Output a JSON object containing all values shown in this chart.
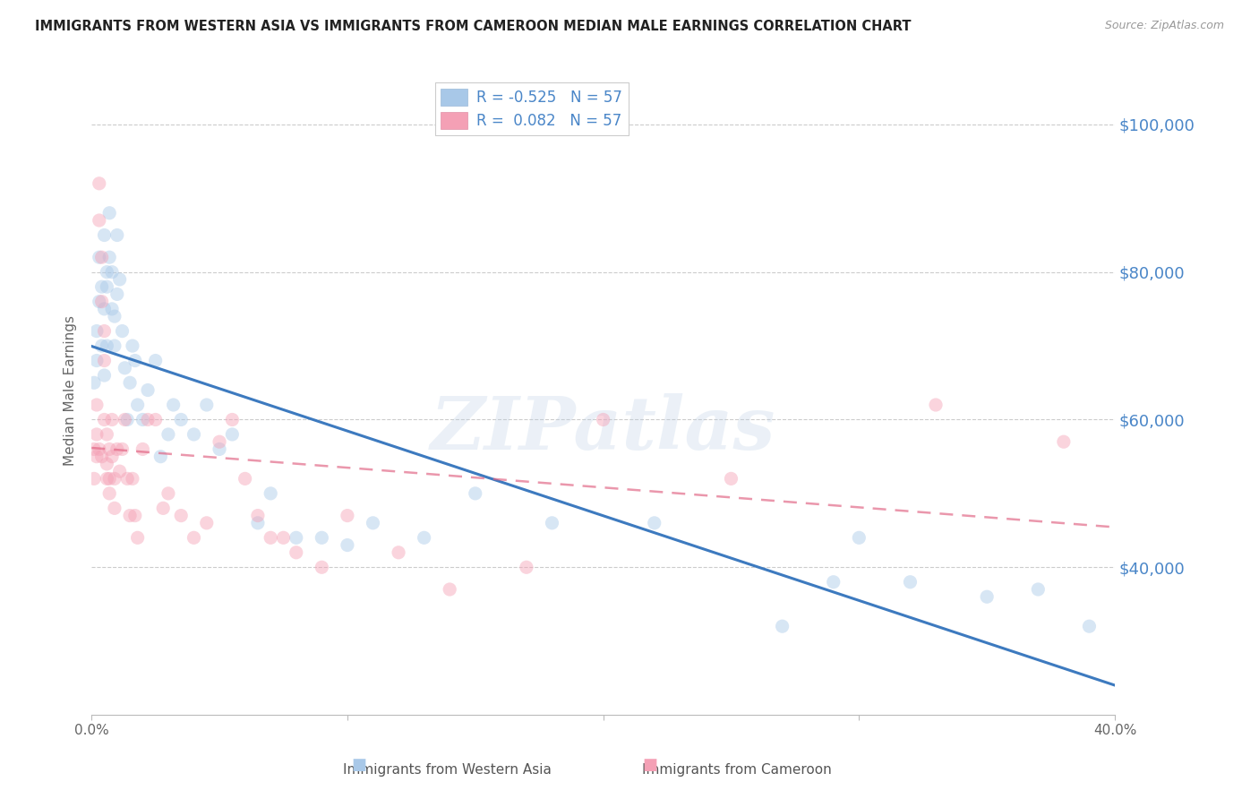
{
  "title": "IMMIGRANTS FROM WESTERN ASIA VS IMMIGRANTS FROM CAMEROON MEDIAN MALE EARNINGS CORRELATION CHART",
  "source": "Source: ZipAtlas.com",
  "ylabel": "Median Male Earnings",
  "xlim": [
    0.0,
    0.4
  ],
  "ylim": [
    20000,
    108000
  ],
  "yticks": [
    40000,
    60000,
    80000,
    100000
  ],
  "xticks": [
    0.0,
    0.1,
    0.2,
    0.3,
    0.4
  ],
  "xtick_labels": [
    "0.0%",
    "",
    "",
    "",
    "40.0%"
  ],
  "ytick_labels": [
    "$40,000",
    "$60,000",
    "$80,000",
    "$100,000"
  ],
  "western_asia_R": -0.525,
  "western_asia_N": 57,
  "cameroon_R": 0.082,
  "cameroon_N": 57,
  "blue_scatter_color": "#a8c8e8",
  "blue_line_color": "#3d7abf",
  "pink_scatter_color": "#f4a0b5",
  "pink_line_color": "#e06080",
  "background_color": "#ffffff",
  "grid_color": "#cccccc",
  "right_axis_color": "#4a86c8",
  "legend_text_color": "#4a86c8",
  "marker_size": 120,
  "marker_alpha": 0.45,
  "wa_x": [
    0.001,
    0.002,
    0.002,
    0.003,
    0.003,
    0.004,
    0.004,
    0.005,
    0.005,
    0.005,
    0.006,
    0.006,
    0.006,
    0.007,
    0.007,
    0.008,
    0.008,
    0.009,
    0.009,
    0.01,
    0.01,
    0.011,
    0.012,
    0.013,
    0.014,
    0.015,
    0.016,
    0.017,
    0.018,
    0.02,
    0.022,
    0.025,
    0.027,
    0.03,
    0.032,
    0.035,
    0.04,
    0.045,
    0.05,
    0.055,
    0.065,
    0.07,
    0.08,
    0.09,
    0.1,
    0.11,
    0.13,
    0.15,
    0.18,
    0.22,
    0.27,
    0.29,
    0.3,
    0.32,
    0.35,
    0.37,
    0.39
  ],
  "wa_y": [
    65000,
    72000,
    68000,
    76000,
    82000,
    70000,
    78000,
    66000,
    75000,
    85000,
    80000,
    70000,
    78000,
    88000,
    82000,
    75000,
    80000,
    70000,
    74000,
    77000,
    85000,
    79000,
    72000,
    67000,
    60000,
    65000,
    70000,
    68000,
    62000,
    60000,
    64000,
    68000,
    55000,
    58000,
    62000,
    60000,
    58000,
    62000,
    56000,
    58000,
    46000,
    50000,
    44000,
    44000,
    43000,
    46000,
    44000,
    50000,
    46000,
    46000,
    32000,
    38000,
    44000,
    38000,
    36000,
    37000,
    32000
  ],
  "cm_x": [
    0.001,
    0.001,
    0.002,
    0.002,
    0.002,
    0.003,
    0.003,
    0.003,
    0.004,
    0.004,
    0.004,
    0.005,
    0.005,
    0.005,
    0.006,
    0.006,
    0.006,
    0.007,
    0.007,
    0.007,
    0.008,
    0.008,
    0.009,
    0.009,
    0.01,
    0.011,
    0.012,
    0.013,
    0.014,
    0.015,
    0.016,
    0.017,
    0.018,
    0.02,
    0.022,
    0.025,
    0.028,
    0.03,
    0.035,
    0.04,
    0.045,
    0.05,
    0.055,
    0.06,
    0.065,
    0.07,
    0.075,
    0.08,
    0.09,
    0.1,
    0.12,
    0.14,
    0.17,
    0.2,
    0.25,
    0.33,
    0.38
  ],
  "cm_y": [
    56000,
    52000,
    62000,
    58000,
    55000,
    92000,
    87000,
    56000,
    82000,
    76000,
    55000,
    72000,
    68000,
    60000,
    58000,
    54000,
    52000,
    56000,
    52000,
    50000,
    60000,
    55000,
    52000,
    48000,
    56000,
    53000,
    56000,
    60000,
    52000,
    47000,
    52000,
    47000,
    44000,
    56000,
    60000,
    60000,
    48000,
    50000,
    47000,
    44000,
    46000,
    57000,
    60000,
    52000,
    47000,
    44000,
    44000,
    42000,
    40000,
    47000,
    42000,
    37000,
    40000,
    60000,
    52000,
    62000,
    57000
  ],
  "watermark": "ZIPatlas",
  "source_color": "#999999",
  "title_color": "#222222"
}
